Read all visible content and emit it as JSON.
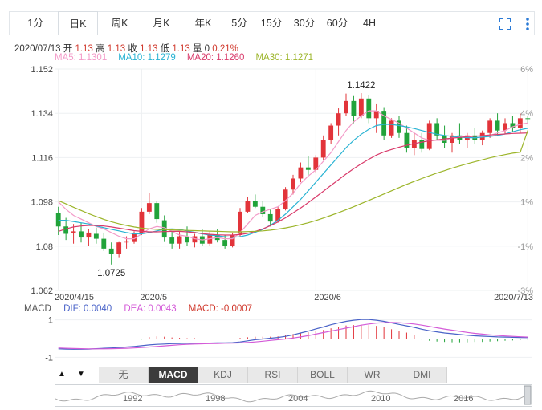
{
  "tabs": [
    {
      "label": "1分",
      "active": false
    },
    {
      "label": "日K",
      "active": true
    },
    {
      "label": "周K",
      "active": false
    },
    {
      "label": "月K",
      "active": false
    },
    {
      "label": "年K",
      "active": false
    },
    {
      "label": "5分",
      "active": false
    },
    {
      "label": "15分",
      "active": false
    },
    {
      "label": "30分",
      "active": false
    },
    {
      "label": "60分",
      "active": false
    },
    {
      "label": "4H",
      "active": false
    }
  ],
  "toolbar": {
    "expand_icon": "fullscreen-icon",
    "more_icon": "more-vertical-icon"
  },
  "info": {
    "date": "2020/07/13",
    "open_label": "开",
    "open": "1.13",
    "high_label": "高",
    "high": "1.13",
    "close_label": "收",
    "close": "1.13",
    "low_label": "低",
    "low": "1.13",
    "vol_label": "量",
    "vol": "0",
    "change": "0.21%"
  },
  "ma_legend": [
    {
      "text": "MA5: 1.1301",
      "color": "#f39ac8"
    },
    {
      "text": "MA10: 1.1279",
      "color": "#29b3d3"
    },
    {
      "text": "MA20: 1.1260",
      "color": "#d93b6b"
    },
    {
      "text": "MA30: 1.1271",
      "color": "#9cb52a"
    }
  ],
  "colors": {
    "up": "#e2343a",
    "down": "#21a33a",
    "grid": "#eef0f2",
    "ma5": "#f39ac8",
    "ma10": "#29b3d3",
    "ma20": "#d93b6b",
    "ma30": "#9cb52a",
    "dif": "#4a63c8",
    "dea": "#d45bd8"
  },
  "chart_data": [
    {
      "type": "candlestick",
      "y_ticks_left": [
        "1.152",
        "1.134",
        "1.116",
        "1.098",
        "1.08",
        "1.062"
      ],
      "y_ticks_right": [
        "6%",
        "4%",
        "2%",
        "1%",
        "-1%",
        "-3%"
      ],
      "ylim": [
        1.062,
        1.152
      ],
      "x_tick_labels": [
        {
          "label": "2020/4/15",
          "index": 0
        },
        {
          "label": "2020/5",
          "index": 11
        },
        {
          "label": "2020/6",
          "index": 34
        },
        {
          "label": "2020/7/13",
          "index": 62
        }
      ],
      "annotations": [
        {
          "text": "1.1422",
          "value": 1.1422,
          "index": 40
        },
        {
          "text": "1.0725",
          "value": 1.0725,
          "index": 7
        }
      ],
      "candles": [
        [
          1.0935,
          1.096,
          1.0845,
          1.088
        ],
        [
          1.088,
          1.0915,
          1.0825,
          1.085
        ],
        [
          1.0855,
          1.089,
          1.081,
          1.086
        ],
        [
          1.086,
          1.0895,
          1.0815,
          1.0835
        ],
        [
          1.0835,
          1.087,
          1.08,
          1.0855
        ],
        [
          1.085,
          1.0875,
          1.081,
          1.083
        ],
        [
          1.083,
          1.0855,
          1.078,
          1.079
        ],
        [
          1.079,
          1.0815,
          1.0725,
          1.077
        ],
        [
          1.077,
          1.082,
          1.0755,
          1.0815
        ],
        [
          1.0815,
          1.084,
          1.079,
          1.082
        ],
        [
          1.082,
          1.086,
          1.081,
          1.085
        ],
        [
          1.085,
          1.0955,
          1.0845,
          1.094
        ],
        [
          1.094,
          1.1015,
          1.093,
          1.0975
        ],
        [
          1.0975,
          1.0985,
          1.0895,
          1.091
        ],
        [
          1.0905,
          1.0925,
          1.082,
          1.0835
        ],
        [
          1.0835,
          1.086,
          1.079,
          1.081
        ],
        [
          1.081,
          1.086,
          1.079,
          1.084
        ],
        [
          1.084,
          1.088,
          1.08,
          1.0815
        ],
        [
          1.0815,
          1.085,
          1.0795,
          1.084
        ],
        [
          1.084,
          1.087,
          1.08,
          1.081
        ],
        [
          1.081,
          1.086,
          1.08,
          1.0845
        ],
        [
          1.0845,
          1.087,
          1.0815,
          1.0825
        ],
        [
          1.0825,
          1.0845,
          1.079,
          1.08
        ],
        [
          1.08,
          1.0855,
          1.0795,
          1.0845
        ],
        [
          1.0845,
          1.0955,
          1.084,
          1.094
        ],
        [
          1.094,
          1.1,
          1.0935,
          1.0985
        ],
        [
          1.0985,
          1.101,
          1.0955,
          1.096
        ],
        [
          1.096,
          1.0985,
          1.092,
          1.093
        ],
        [
          1.093,
          1.095,
          1.088,
          1.09
        ],
        [
          1.09,
          1.096,
          1.0895,
          1.095
        ],
        [
          1.095,
          1.104,
          1.0945,
          1.103
        ],
        [
          1.103,
          1.109,
          1.101,
          1.1075
        ],
        [
          1.1075,
          1.114,
          1.106,
          1.112
        ],
        [
          1.112,
          1.1165,
          1.109,
          1.111
        ],
        [
          1.111,
          1.117,
          1.11,
          1.116
        ],
        [
          1.116,
          1.125,
          1.115,
          1.123
        ],
        [
          1.123,
          1.13,
          1.1215,
          1.129
        ],
        [
          1.129,
          1.136,
          1.125,
          1.134
        ],
        [
          1.134,
          1.142,
          1.133,
          1.139
        ],
        [
          1.139,
          1.141,
          1.13,
          1.133
        ],
        [
          1.133,
          1.1422,
          1.132,
          1.14
        ],
        [
          1.14,
          1.1415,
          1.13,
          1.132
        ],
        [
          1.132,
          1.138,
          1.126,
          1.135
        ],
        [
          1.135,
          1.1365,
          1.123,
          1.125
        ],
        [
          1.125,
          1.132,
          1.124,
          1.131
        ],
        [
          1.131,
          1.133,
          1.124,
          1.126
        ],
        [
          1.126,
          1.129,
          1.118,
          1.12
        ],
        [
          1.12,
          1.126,
          1.117,
          1.123
        ],
        [
          1.123,
          1.126,
          1.118,
          1.1195
        ],
        [
          1.1195,
          1.131,
          1.119,
          1.13
        ],
        [
          1.13,
          1.132,
          1.123,
          1.125
        ],
        [
          1.125,
          1.129,
          1.12,
          1.122
        ],
        [
          1.122,
          1.126,
          1.118,
          1.125
        ],
        [
          1.125,
          1.13,
          1.1215,
          1.123
        ],
        [
          1.123,
          1.126,
          1.12,
          1.125
        ],
        [
          1.125,
          1.128,
          1.1215,
          1.123
        ],
        [
          1.123,
          1.127,
          1.121,
          1.126
        ],
        [
          1.126,
          1.132,
          1.124,
          1.131
        ],
        [
          1.131,
          1.134,
          1.125,
          1.127
        ],
        [
          1.127,
          1.132,
          1.1255,
          1.13
        ],
        [
          1.13,
          1.133,
          1.1265,
          1.128
        ],
        [
          1.128,
          1.134,
          1.126,
          1.132
        ],
        [
          1.132,
          1.133,
          1.13,
          1.1318
        ]
      ],
      "ma_series": [
        {
          "name": "MA5",
          "key": "ma5",
          "values": [
            1.098,
            1.095,
            1.0925,
            1.091,
            1.0895,
            1.088,
            1.087,
            1.0855,
            1.084,
            1.083,
            1.083,
            1.085,
            1.087,
            1.088,
            1.0875,
            1.086,
            1.0845,
            1.084,
            1.083,
            1.0825,
            1.083,
            1.0835,
            1.083,
            1.083,
            1.0855,
            1.089,
            1.0925,
            1.094,
            1.095,
            1.096,
            1.0985,
            1.1015,
            1.1055,
            1.1085,
            1.111,
            1.1145,
            1.118,
            1.1225,
            1.127,
            1.1305,
            1.133,
            1.135,
            1.135,
            1.133,
            1.1315,
            1.13,
            1.128,
            1.126,
            1.124,
            1.123,
            1.123,
            1.123,
            1.124,
            1.1245,
            1.1245,
            1.124,
            1.1245,
            1.125,
            1.126,
            1.127,
            1.1285,
            1.1295,
            1.1301
          ]
        },
        {
          "name": "MA10",
          "key": "ma10",
          "values": [
            1.0905,
            1.0905,
            1.09,
            1.0895,
            1.089,
            1.0882,
            1.0875,
            1.0868,
            1.0862,
            1.0855,
            1.085,
            1.085,
            1.0855,
            1.0862,
            1.0868,
            1.087,
            1.0868,
            1.0862,
            1.0856,
            1.085,
            1.0845,
            1.0842,
            1.0838,
            1.0836,
            1.0838,
            1.0845,
            1.0856,
            1.0868,
            1.0885,
            1.0905,
            1.093,
            1.096,
            1.099,
            1.1025,
            1.106,
            1.1095,
            1.113,
            1.1165,
            1.12,
            1.123,
            1.1255,
            1.1275,
            1.129,
            1.1295,
            1.1295,
            1.129,
            1.1285,
            1.1278,
            1.127,
            1.1262,
            1.1255,
            1.125,
            1.1246,
            1.1243,
            1.1241,
            1.1241,
            1.1243,
            1.1246,
            1.125,
            1.1256,
            1.1265,
            1.1273,
            1.1279
          ]
        },
        {
          "name": "MA20",
          "key": "ma20",
          "values": [
            1.086,
            1.087,
            1.0878,
            1.0882,
            1.0884,
            1.0884,
            1.0882,
            1.0878,
            1.0873,
            1.0868,
            1.0863,
            1.086,
            1.0858,
            1.0858,
            1.0859,
            1.086,
            1.086,
            1.0858,
            1.0855,
            1.0851,
            1.0848,
            1.0846,
            1.0845,
            1.0845,
            1.0847,
            1.0852,
            1.086,
            1.087,
            1.0883,
            1.0898,
            1.0915,
            1.0935,
            1.0955,
            1.0977,
            1.1,
            1.1023,
            1.1047,
            1.107,
            1.1093,
            1.1115,
            1.1135,
            1.1153,
            1.117,
            1.1183,
            1.1193,
            1.1202,
            1.121,
            1.1217,
            1.1223,
            1.1228,
            1.1232,
            1.1236,
            1.1239,
            1.1242,
            1.1245,
            1.1247,
            1.1249,
            1.1252,
            1.1254,
            1.1256,
            1.1258,
            1.1259,
            1.126
          ]
        },
        {
          "name": "MA30",
          "key": "ma30",
          "values": [
            1.0985,
            1.0972,
            1.0958,
            1.0945,
            1.0932,
            1.092,
            1.0909,
            1.0899,
            1.0891,
            1.0884,
            1.0878,
            1.0873,
            1.087,
            1.0868,
            1.0867,
            1.0866,
            1.0865,
            1.0864,
            1.0863,
            1.0862,
            1.0861,
            1.086,
            1.0859,
            1.0858,
            1.0858,
            1.0859,
            1.086,
            1.0862,
            1.0865,
            1.0869,
            1.0874,
            1.088,
            1.0887,
            1.0895,
            1.0904,
            1.0914,
            1.0925,
            1.0936,
            1.0948,
            1.096,
            1.0973,
            1.0986,
            1.0999,
            1.1012,
            1.1025,
            1.1038,
            1.1051,
            1.1063,
            1.1075,
            1.1086,
            1.1097,
            1.1107,
            1.1117,
            1.1126,
            1.1135,
            1.1143,
            1.1151,
            1.1159,
            1.1166,
            1.1172,
            1.1178,
            1.1182,
            1.1271
          ]
        }
      ]
    },
    {
      "type": "macd",
      "legend": {
        "title": "MACD",
        "dif": "DIF: 0.0040",
        "dea": "DEA: 0.0043",
        "macd": "MACD: -0.0007"
      },
      "y_ticks": [
        "1",
        "-1"
      ],
      "hist": [
        0,
        0,
        0,
        0,
        0,
        0,
        0,
        0,
        0,
        0,
        0,
        -0.05,
        0.08,
        0.12,
        0.1,
        0.06,
        0.04,
        0.02,
        0.02,
        0.0,
        0.0,
        0.0,
        -0.02,
        -0.02,
        0.04,
        0.07,
        0.1,
        0.1,
        0.1,
        0.12,
        0.18,
        0.24,
        0.3,
        0.34,
        0.4,
        0.46,
        0.55,
        0.62,
        0.7,
        0.72,
        0.74,
        0.72,
        0.68,
        0.6,
        0.5,
        0.4,
        0.32,
        0.2,
        -0.05,
        -0.12,
        -0.16,
        -0.18,
        -0.2,
        -0.2,
        -0.2,
        -0.18,
        -0.18,
        -0.16,
        -0.14,
        -0.12,
        -0.1,
        -0.08,
        -0.06
      ],
      "dif": [
        -0.55,
        -0.56,
        -0.57,
        -0.57,
        -0.56,
        -0.54,
        -0.52,
        -0.5,
        -0.48,
        -0.45,
        -0.42,
        -0.38,
        -0.34,
        -0.31,
        -0.29,
        -0.27,
        -0.26,
        -0.25,
        -0.25,
        -0.24,
        -0.24,
        -0.23,
        -0.23,
        -0.22,
        -0.18,
        -0.12,
        -0.06,
        -0.02,
        0.02,
        0.06,
        0.12,
        0.2,
        0.3,
        0.4,
        0.52,
        0.62,
        0.74,
        0.84,
        0.92,
        0.98,
        1.02,
        1.02,
        0.98,
        0.92,
        0.84,
        0.76,
        0.68,
        0.6,
        0.5,
        0.42,
        0.36,
        0.3,
        0.26,
        0.22,
        0.18,
        0.15,
        0.13,
        0.11,
        0.09,
        0.08,
        0.07,
        0.06,
        0.05
      ],
      "dea": [
        -0.5,
        -0.52,
        -0.53,
        -0.54,
        -0.55,
        -0.55,
        -0.55,
        -0.54,
        -0.53,
        -0.52,
        -0.5,
        -0.48,
        -0.45,
        -0.42,
        -0.39,
        -0.36,
        -0.33,
        -0.31,
        -0.29,
        -0.28,
        -0.27,
        -0.26,
        -0.25,
        -0.24,
        -0.23,
        -0.21,
        -0.18,
        -0.14,
        -0.1,
        -0.06,
        -0.02,
        0.03,
        0.09,
        0.16,
        0.24,
        0.32,
        0.4,
        0.48,
        0.56,
        0.64,
        0.72,
        0.78,
        0.83,
        0.85,
        0.86,
        0.85,
        0.82,
        0.78,
        0.72,
        0.65,
        0.58,
        0.51,
        0.45,
        0.39,
        0.33,
        0.28,
        0.24,
        0.2,
        0.17,
        0.14,
        0.12,
        0.1,
        0.08
      ]
    }
  ],
  "indicators": {
    "up_arrow": "▲",
    "down_arrow": "▼",
    "items": [
      {
        "label": "无",
        "active": false
      },
      {
        "label": "MACD",
        "active": true
      },
      {
        "label": "KDJ",
        "active": false
      },
      {
        "label": "RSI",
        "active": false
      },
      {
        "label": "BOLL",
        "active": false
      },
      {
        "label": "WR",
        "active": false
      },
      {
        "label": "DMI",
        "active": false
      }
    ]
  },
  "navigator": {
    "year_labels": [
      "1992",
      "1998",
      "2004",
      "2010",
      "2016"
    ]
  }
}
